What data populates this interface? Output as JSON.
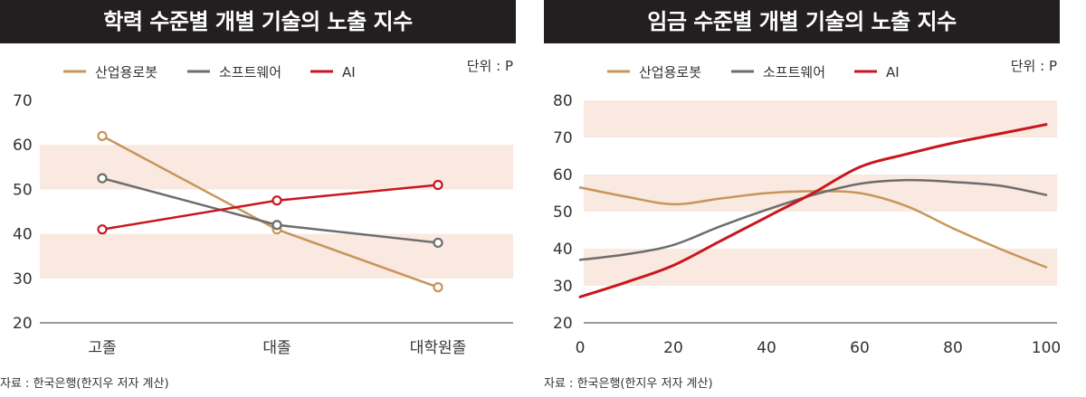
{
  "chart_data": [
    {
      "type": "line",
      "title": "학력 수준별 개별 기술의 노출 지수",
      "unit": "단위 : P",
      "source": "자료 : 한국은행(한지우 저자 계산)",
      "categories": [
        "고졸",
        "대졸",
        "대학원졸"
      ],
      "ylim": [
        20,
        70
      ],
      "yticks": [
        20,
        30,
        40,
        50,
        60,
        70
      ],
      "legend": "top",
      "markers": true,
      "series": [
        {
          "name": "산업용로봇",
          "color": "#c8955a",
          "values": [
            62,
            41,
            28
          ]
        },
        {
          "name": "소프트웨어",
          "color": "#6d6d6d",
          "values": [
            52.5,
            42,
            38
          ]
        },
        {
          "name": "AI",
          "color": "#c8161e",
          "values": [
            41,
            47.5,
            51
          ]
        }
      ]
    },
    {
      "type": "line",
      "title": "임금 수준별 개별 기술의 노출 지수",
      "unit": "단위 : P",
      "source": "자료 : 한국은행(한지우 저자 계산)",
      "x": [
        0,
        10,
        20,
        30,
        40,
        50,
        60,
        70,
        80,
        90,
        100
      ],
      "xlim": [
        0,
        100
      ],
      "xticks": [
        0,
        20,
        40,
        60,
        80,
        100
      ],
      "ylim": [
        20,
        80
      ],
      "yticks": [
        20,
        30,
        40,
        50,
        60,
        70,
        80
      ],
      "legend": "top",
      "markers": false,
      "series": [
        {
          "name": "산업용로봇",
          "color": "#c8955a",
          "values": [
            56.5,
            54,
            52,
            53.5,
            55,
            55.5,
            55,
            51.5,
            45.5,
            40,
            35
          ]
        },
        {
          "name": "소프트웨어",
          "color": "#6d6d6d",
          "values": [
            37,
            38.5,
            41,
            46,
            50.5,
            54.5,
            57.5,
            58.5,
            58,
            57,
            54.5
          ]
        },
        {
          "name": "AI",
          "color": "#c8161e",
          "values": [
            27,
            31,
            35.5,
            42,
            48.5,
            55,
            62,
            65.5,
            68.5,
            71,
            73.5
          ]
        }
      ]
    }
  ],
  "colors": {
    "band": "#f9e9e0",
    "titlebar": "#231f20"
  }
}
